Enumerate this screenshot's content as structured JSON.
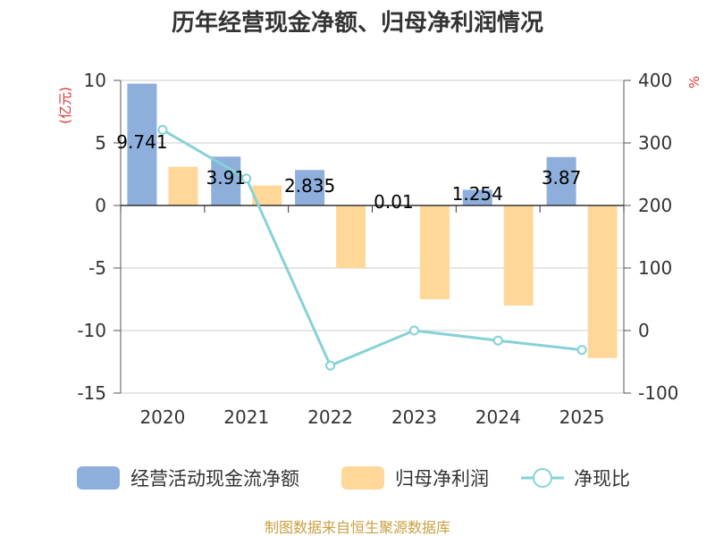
{
  "chart_data": {
    "type": "bar",
    "title": "历年经营现金净额、归母净利润情况",
    "categories": [
      "2020",
      "2021",
      "2022",
      "2023",
      "2024",
      "2025"
    ],
    "series": [
      {
        "name": "经营活动现金流净额",
        "type": "bar",
        "axis": "left",
        "color": "#8eafdc",
        "values": [
          9.741,
          3.91,
          2.835,
          0.01,
          1.254,
          3.87
        ],
        "labels": [
          "9.741",
          "3.91",
          "2.835",
          "0.01",
          "1.254",
          "3.87"
        ]
      },
      {
        "name": "归母净利润",
        "type": "bar",
        "axis": "left",
        "color": "#ffd899",
        "values": [
          3.1,
          1.6,
          -5.0,
          -7.5,
          -8.0,
          -12.2
        ]
      },
      {
        "name": "净现比",
        "type": "line",
        "axis": "right",
        "color": "#86d2d6",
        "values": [
          321,
          243,
          -56,
          0,
          -16,
          -31
        ]
      }
    ],
    "left_axis": {
      "unit": "(亿元)",
      "ylim": [
        -15,
        10
      ],
      "ticks": [
        10,
        5,
        0,
        -5,
        -10,
        -15
      ]
    },
    "right_axis": {
      "unit": "%",
      "ylim": [
        -100,
        400
      ],
      "ticks": [
        400,
        300,
        200,
        100,
        0,
        -100
      ]
    },
    "legend": "bottom",
    "grid": true
  },
  "source": "制图数据来自恒生聚源数据库"
}
